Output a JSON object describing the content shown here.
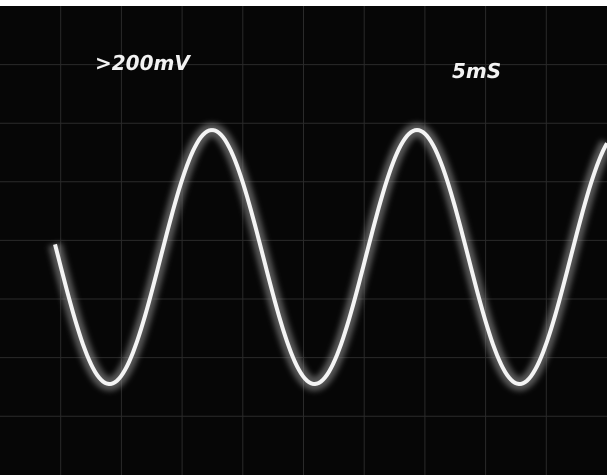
{
  "screen": {
    "volts_label": ">200mV",
    "time_label": "5mS"
  }
}
